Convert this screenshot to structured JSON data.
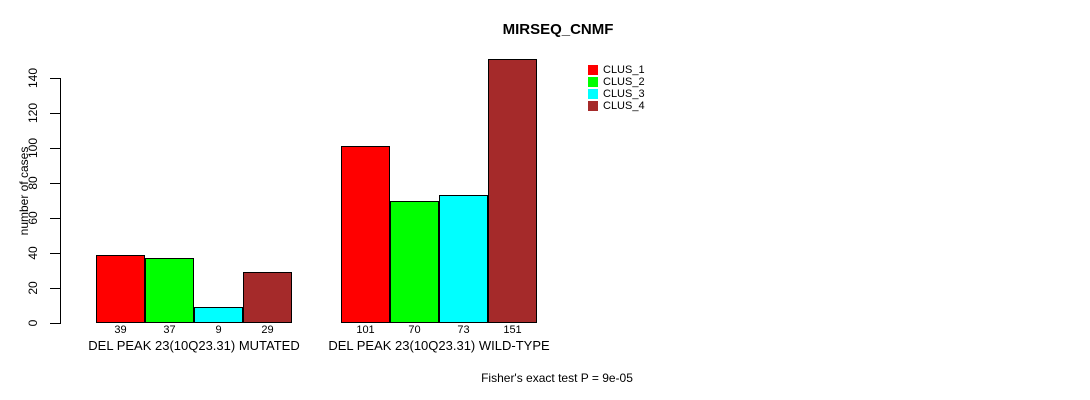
{
  "title": "MIRSEQ_CNMF",
  "footer_note": "Fisher's exact test P = 9e-05",
  "colors": {
    "background": "#FFFFFF",
    "axis": "#000000",
    "text": "#000000",
    "clus_1": "#FF0000",
    "clus_2": "#00FF00",
    "clus_3": "#00FFFF",
    "clus_4": "#A52A2A"
  },
  "legend": {
    "items": [
      {
        "label": "CLUS_1",
        "color": "#FF0000"
      },
      {
        "label": "CLUS_2",
        "color": "#00FF00"
      },
      {
        "label": "CLUS_3",
        "color": "#00FFFF"
      },
      {
        "label": "CLUS_4",
        "color": "#A52A2A"
      }
    ]
  },
  "chart_data": {
    "type": "bar",
    "title": "MIRSEQ_CNMF",
    "xlabel": "",
    "ylabel": "number of cases",
    "ylim": [
      0,
      155
    ],
    "yticks": [
      0,
      20,
      40,
      60,
      80,
      100,
      120,
      140
    ],
    "grid": false,
    "legend_position": "top-right",
    "categories": [
      "DEL PEAK 23(10Q23.31) MUTATED",
      "DEL PEAK 23(10Q23.31) WILD-TYPE"
    ],
    "series": [
      {
        "name": "CLUS_1",
        "color": "#FF0000",
        "values": [
          39,
          101
        ]
      },
      {
        "name": "CLUS_2",
        "color": "#00FF00",
        "values": [
          37,
          70
        ]
      },
      {
        "name": "CLUS_3",
        "color": "#00FFFF",
        "values": [
          9,
          73
        ]
      },
      {
        "name": "CLUS_4",
        "color": "#A52A2A",
        "values": [
          29,
          151
        ]
      }
    ],
    "bar_value_labels": {
      "DEL PEAK 23(10Q23.31) MUTATED": [
        39,
        37,
        9,
        29
      ],
      "DEL PEAK 23(10Q23.31) WILD-TYPE": [
        101,
        70,
        73,
        151
      ]
    },
    "annotation": "Fisher's exact test P = 9e-05"
  }
}
